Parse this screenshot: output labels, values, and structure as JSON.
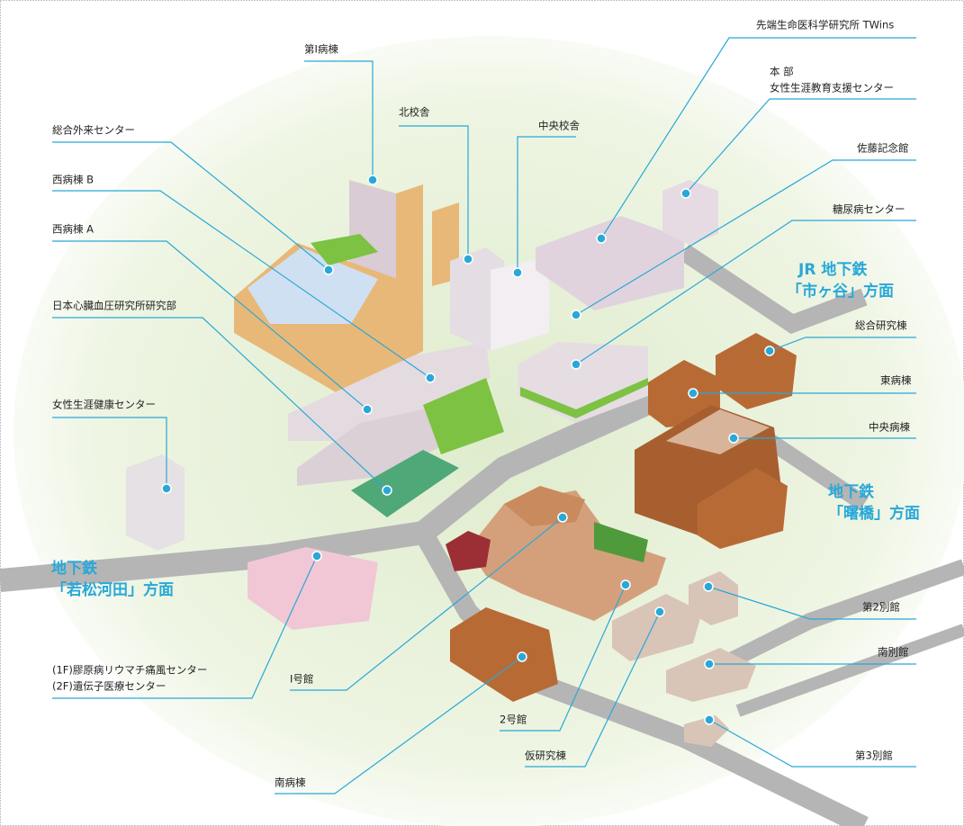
{
  "labels": [
    [
      "第Ⅰ病棟"
    ],
    [
      "総合外来センター"
    ],
    [
      "西病棟 B"
    ],
    [
      "西病棟 A"
    ],
    [
      "日本心臓血圧研究所研究部"
    ],
    [
      "女性生涯健康センター"
    ],
    [
      "(1F)膠原病リウマチ痛風センター",
      "(2F)遺伝子医療センター"
    ],
    [
      "Ⅰ号館"
    ],
    [
      "南病棟"
    ],
    [
      "2号館"
    ],
    [
      "仮研究棟"
    ],
    [
      "第3別館"
    ],
    [
      "南別館"
    ],
    [
      "第2別館"
    ],
    [
      "中央病棟"
    ],
    [
      "東病棟"
    ],
    [
      "総合研究棟"
    ],
    [
      "糖尿病センター"
    ],
    [
      "佐藤記念館"
    ],
    [
      "本 部",
      "女性生涯教育支援センター"
    ],
    [
      "先端生命医科学研究所 TWins"
    ],
    [
      "中央校舎"
    ],
    [
      "北校舎"
    ]
  ],
  "directions": [
    [
      "JR 地下鉄",
      "「市ヶ谷」方面"
    ],
    [
      "地下鉄",
      "「曙橋」方面"
    ],
    [
      "地下鉄",
      "「若松河田」方面"
    ]
  ]
}
